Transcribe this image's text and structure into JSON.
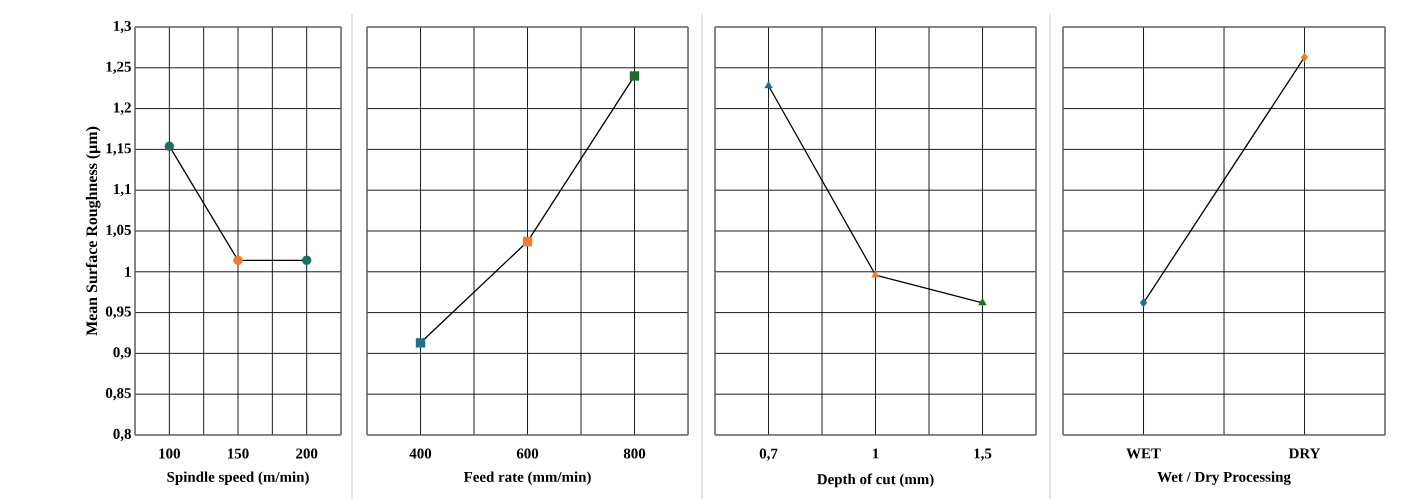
{
  "chart_data": [
    {
      "type": "line",
      "categories": [
        "100",
        "150",
        "200"
      ],
      "xlabel": "Spindle speed (m/min)",
      "ylabel": "Mean Surface Roughness (µm)",
      "series": [
        {
          "color": "#000000",
          "values": [
            1.154,
            1.014,
            1.014
          ]
        }
      ],
      "colors": [
        "#1f6f5f",
        "#ed7d31",
        "#1f6f5f"
      ],
      "marker": "circle",
      "grid": true,
      "ylim": [
        0.8,
        1.3
      ],
      "yticks": [
        {
          "value": 0.8,
          "label": "0,8"
        },
        {
          "value": 0.85,
          "label": "0,85"
        },
        {
          "value": 0.9,
          "label": "0,9"
        },
        {
          "value": 0.95,
          "label": "0,95"
        },
        1,
        {
          "value": 1.05,
          "label": "1,05"
        },
        {
          "value": 1.1,
          "label": "1,1"
        },
        {
          "value": 1.15,
          "label": "1,15"
        },
        {
          "value": 1.2,
          "label": "1,2"
        },
        {
          "value": 1.25,
          "label": "1,25"
        },
        {
          "value": 1.3,
          "label": "1,3"
        }
      ]
    },
    {
      "type": "line",
      "categories": [
        "400",
        "600",
        "800"
      ],
      "xlabel": "Feed rate (mm/min)",
      "series": [
        {
          "color": "#000000",
          "values": [
            0.913,
            1.037,
            1.24
          ]
        }
      ],
      "colors": [
        "#1f6e8c",
        "#ed7d31",
        "#1e6b2a"
      ],
      "marker": "square",
      "grid": true,
      "tick_labels": "x",
      "ylim": [
        0.8,
        1.3
      ],
      "yticks": [
        {
          "value": 0.8,
          "label": null
        },
        {
          "value": 0.85,
          "label": null
        },
        {
          "value": 0.9,
          "label": null
        },
        {
          "value": 0.95,
          "label": null
        },
        {
          "value": 1,
          "label": null
        },
        {
          "value": 1.05,
          "label": null
        },
        {
          "value": 1.1,
          "label": null
        },
        {
          "value": 1.15,
          "label": null
        },
        {
          "value": 1.2,
          "label": null
        },
        {
          "value": 1.25,
          "label": null
        },
        {
          "value": 1.3,
          "label": null
        }
      ]
    },
    {
      "type": "line",
      "categories": [
        "0,7",
        "1",
        "1,5"
      ],
      "xlabel": "Depth of cut (mm)",
      "series": [
        {
          "color": "#000000",
          "values": [
            1.228,
            0.996,
            0.962
          ]
        }
      ],
      "colors": [
        "#1f6e8c",
        "#ed7d31",
        "#1e6b2a"
      ],
      "marker": "triangle",
      "grid": true,
      "tick_labels": "x",
      "ylim": [
        0.8,
        1.3
      ],
      "yticks": [
        {
          "value": 0.8,
          "label": null
        },
        {
          "value": 0.85,
          "label": null
        },
        {
          "value": 0.9,
          "label": null
        },
        {
          "value": 0.95,
          "label": null
        },
        {
          "value": 1,
          "label": null
        },
        {
          "value": 1.05,
          "label": null
        },
        {
          "value": 1.1,
          "label": null
        },
        {
          "value": 1.15,
          "label": null
        },
        {
          "value": 1.2,
          "label": null
        },
        {
          "value": 1.25,
          "label": null
        },
        {
          "value": 1.3,
          "label": null
        }
      ]
    },
    {
      "type": "line",
      "categories": [
        "WET",
        "DRY"
      ],
      "xlabel": "Wet / Dry Processing",
      "series": [
        {
          "color": "#000000",
          "values": [
            0.962,
            1.263
          ]
        }
      ],
      "colors": [
        "#1f6e8c",
        "#ed7d31"
      ],
      "marker": "diamond",
      "grid": true,
      "tick_labels": "x",
      "ylim": [
        0.8,
        1.3
      ],
      "yticks": [
        {
          "value": 0.8,
          "label": null
        },
        {
          "value": 0.85,
          "label": null
        },
        {
          "value": 0.9,
          "label": null
        },
        {
          "value": 0.95,
          "label": null
        },
        {
          "value": 1,
          "label": null
        },
        {
          "value": 1.05,
          "label": null
        },
        {
          "value": 1.1,
          "label": null
        },
        {
          "value": 1.15,
          "label": null
        },
        {
          "value": 1.2,
          "label": null
        },
        {
          "value": 1.25,
          "label": null
        },
        {
          "value": 1.3,
          "label": null
        }
      ]
    }
  ]
}
